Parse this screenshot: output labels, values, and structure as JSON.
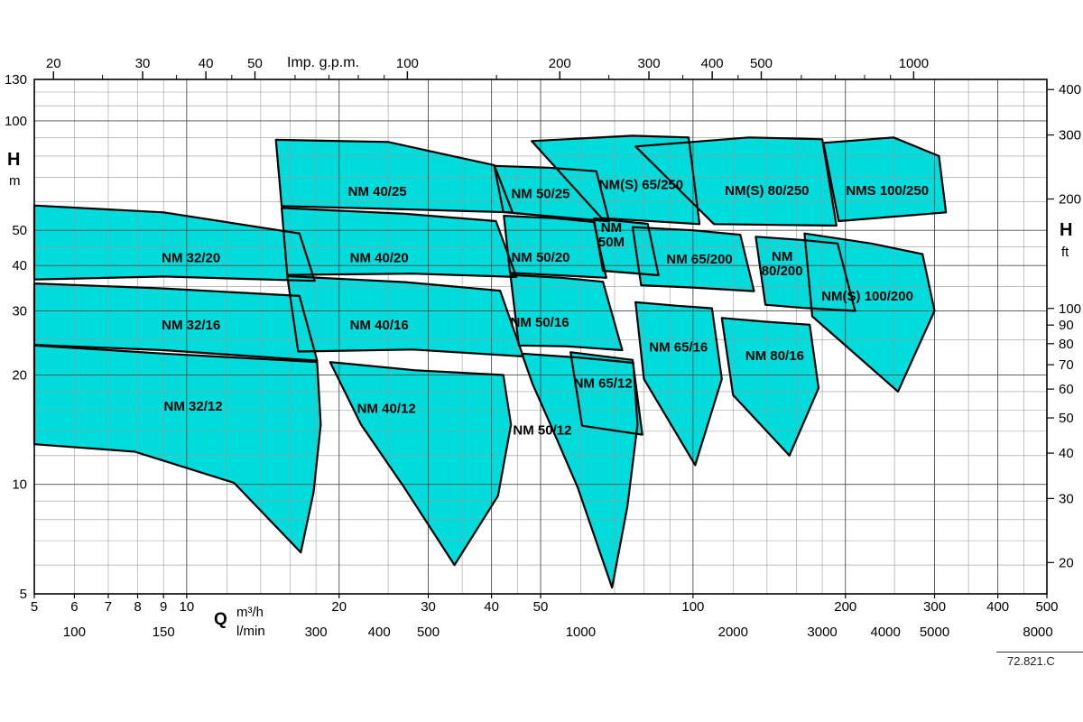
{
  "meta": {
    "drawing_number": "72.821.C"
  },
  "colors": {
    "background": "#ffffff",
    "region_fill": "#00DCDC",
    "region_stroke": "#000000",
    "grid_minor": "#9a9a9a",
    "grid_major": "#4d4d4d",
    "axis": "#000000"
  },
  "chart_data": {
    "type": "area",
    "title": "",
    "x_axis_bottom": {
      "label": "Q",
      "unit_primary": "m³/h",
      "unit_secondary": "l/min",
      "scale": "log",
      "range_m3h": [
        5,
        500
      ],
      "ticks_m3h": [
        5,
        6,
        7,
        8,
        9,
        10,
        20,
        30,
        40,
        50,
        100,
        200,
        300,
        400,
        500
      ],
      "ticks_lmin": [
        100,
        150,
        300,
        400,
        500,
        1000,
        2000,
        3000,
        4000,
        5000,
        8000
      ],
      "m3h_per_lmin": 0.06
    },
    "x_axis_top": {
      "label": "Imp. g.p.m.",
      "ticks": [
        20,
        30,
        40,
        50,
        100,
        200,
        300,
        400,
        500,
        1000
      ],
      "minor_ticks": [
        25,
        35,
        45,
        60,
        70,
        80,
        90,
        150,
        250,
        350,
        450,
        600,
        700,
        800,
        900
      ],
      "m3h_per_gpm": 0.2728
    },
    "y_axis_left": {
      "label": "H",
      "unit": "m",
      "scale": "log",
      "range": [
        5,
        130
      ],
      "ticks": [
        5,
        10,
        20,
        30,
        40,
        50,
        100,
        130
      ]
    },
    "y_axis_right": {
      "label": "H",
      "unit": "ft",
      "ticks": [
        20,
        30,
        40,
        50,
        60,
        70,
        80,
        90,
        100,
        200,
        300,
        400
      ],
      "m_per_ft": 0.3048
    },
    "grid": {
      "x_major": [
        5,
        10,
        20,
        30,
        40,
        50,
        100,
        200,
        300,
        400,
        500
      ],
      "x_minor": [
        6,
        7,
        8,
        9,
        12,
        14,
        16,
        18,
        25,
        35,
        45,
        60,
        70,
        80,
        90,
        120,
        140,
        160,
        180,
        250,
        350,
        450
      ],
      "y_major": [
        5,
        10,
        20,
        30,
        40,
        50,
        100,
        130
      ],
      "y_minor": [
        6,
        7,
        8,
        9,
        12,
        14,
        16,
        18,
        25,
        35,
        45,
        60,
        70,
        80,
        90,
        110,
        120
      ]
    },
    "regions": [
      {
        "name": "NM 32/20",
        "label_lines": [
          "NM 32/20"
        ],
        "label_at": [
          10.2,
          42
        ],
        "points": [
          [
            5,
            58.5
          ],
          [
            9,
            56
          ],
          [
            16.7,
            49
          ],
          [
            17.9,
            36.3
          ],
          [
            9,
            37.3
          ],
          [
            5,
            36.6
          ]
        ]
      },
      {
        "name": "NM 32/16",
        "label_lines": [
          "NM 32/16"
        ],
        "label_at": [
          10.2,
          27.5
        ],
        "points": [
          [
            5,
            35.7
          ],
          [
            9,
            34.6
          ],
          [
            16.7,
            33
          ],
          [
            18.1,
            21.9
          ],
          [
            9,
            23.4
          ],
          [
            5,
            24.2
          ]
        ]
      },
      {
        "name": "NM 32/12",
        "label_lines": [
          "NM 32/12"
        ],
        "label_at": [
          10.3,
          16.4
        ],
        "points": [
          [
            5,
            24.1
          ],
          [
            9,
            22.9
          ],
          [
            18.1,
            21.7
          ],
          [
            18.4,
            14.6
          ],
          [
            17.8,
            9.5
          ],
          [
            16.8,
            6.5
          ],
          [
            12.4,
            10.1
          ],
          [
            7.9,
            12.3
          ],
          [
            5,
            12.9
          ]
        ]
      },
      {
        "name": "NM 40/25",
        "label_lines": [
          "NM 40/25"
        ],
        "label_at": [
          23.8,
          64
        ],
        "points": [
          [
            15,
            88.7
          ],
          [
            25,
            87.5
          ],
          [
            40.5,
            75.5
          ],
          [
            44,
            56
          ],
          [
            28,
            57
          ],
          [
            15.4,
            58.3
          ]
        ]
      },
      {
        "name": "NM 40/20",
        "label_lines": [
          "NM 40/20"
        ],
        "label_at": [
          24,
          42
        ],
        "points": [
          [
            15.4,
            57.6
          ],
          [
            27,
            55.5
          ],
          [
            40.8,
            53
          ],
          [
            44.8,
            37.2
          ],
          [
            28,
            38
          ],
          [
            15.8,
            37.7
          ]
        ]
      },
      {
        "name": "NM 40/16",
        "label_lines": [
          "NM 40/16"
        ],
        "label_at": [
          24,
          27.5
        ],
        "points": [
          [
            15.8,
            37.4
          ],
          [
            27,
            36
          ],
          [
            41.6,
            34.1
          ],
          [
            46.2,
            22.5
          ],
          [
            28,
            23.5
          ],
          [
            16.6,
            23.2
          ]
        ]
      },
      {
        "name": "NM 40/12",
        "label_lines": [
          "NM 40/12"
        ],
        "label_at": [
          24.8,
          16.2
        ],
        "points": [
          [
            19.2,
            21.7
          ],
          [
            28.3,
            20.6
          ],
          [
            42.2,
            20
          ],
          [
            43.7,
            14.6
          ],
          [
            41.2,
            9.3
          ],
          [
            33.8,
            6
          ],
          [
            26.9,
            9.8
          ],
          [
            22.1,
            14.6
          ]
        ]
      },
      {
        "name": "NM 50/25",
        "label_lines": [
          "NM 50/25"
        ],
        "label_at": [
          50,
          63
        ],
        "points": [
          [
            40.5,
            75.2
          ],
          [
            52,
            74.3
          ],
          [
            64.4,
            72.7
          ],
          [
            68.3,
            52.9
          ],
          [
            53.4,
            54.5
          ],
          [
            42.2,
            56.1
          ]
        ]
      },
      {
        "name": "NM 50M",
        "label_lines": [
          "NM",
          "50M"
        ],
        "label_at": [
          69,
          48.7
        ],
        "points": [
          [
            63.7,
            53.9
          ],
          [
            81.4,
            52.1
          ],
          [
            85.5,
            37.6
          ],
          [
            66.4,
            38.7
          ]
        ]
      },
      {
        "name": "NM 50/20",
        "label_lines": [
          "NM 50/20"
        ],
        "label_at": [
          50,
          42.2
        ],
        "points": [
          [
            42.3,
            54.8
          ],
          [
            53,
            54
          ],
          [
            63.7,
            52.7
          ],
          [
            67.4,
            37
          ],
          [
            54,
            37.6
          ],
          [
            43.5,
            38.2
          ]
        ]
      },
      {
        "name": "NM 50/16",
        "label_lines": [
          "NM 50/16"
        ],
        "label_at": [
          49.8,
          27.9
        ],
        "points": [
          [
            43.6,
            37.7
          ],
          [
            55,
            37
          ],
          [
            66.4,
            36.1
          ],
          [
            72.5,
            23.4
          ],
          [
            56,
            24
          ],
          [
            45.3,
            24.1
          ]
        ]
      },
      {
        "name": "NM 50/12",
        "label_lines": [
          "NM 50/12"
        ],
        "label_at": [
          50.4,
          14.1
        ],
        "points": [
          [
            45.9,
            22.9
          ],
          [
            60,
            22.3
          ],
          [
            76.2,
            21.6
          ],
          [
            77.7,
            14.6
          ],
          [
            74.2,
            8.7
          ],
          [
            69.2,
            5.2
          ],
          [
            59.2,
            9.8
          ],
          [
            52.3,
            14.6
          ],
          [
            48.2,
            18.9
          ]
        ]
      },
      {
        "name": "NM 65/12",
        "label_lines": [
          "NM 65/12"
        ],
        "label_at": [
          66.4,
          19
        ],
        "points": [
          [
            57.3,
            23.1
          ],
          [
            76,
            22
          ],
          [
            79.4,
            13.7
          ],
          [
            60.4,
            14.5
          ]
        ]
      },
      {
        "name": "NM 65/16",
        "label_lines": [
          "NM 65/16"
        ],
        "label_at": [
          93.6,
          23.9
        ],
        "points": [
          [
            77,
            31.7
          ],
          [
            93,
            31
          ],
          [
            109,
            30.5
          ],
          [
            114,
            19.5
          ],
          [
            101,
            11.3
          ],
          [
            80,
            19.5
          ]
        ]
      },
      {
        "name": "NM 65/200",
        "label_lines": [
          "NM 65/200"
        ],
        "label_at": [
          103,
          41.7
        ],
        "points": [
          [
            76,
            51
          ],
          [
            100,
            50
          ],
          [
            124,
            48.6
          ],
          [
            132,
            34
          ],
          [
            100,
            34.8
          ],
          [
            79,
            35.3
          ]
        ]
      },
      {
        "name": "NM(S) 65/250",
        "label_lines": [
          "NM(S) 65/250"
        ],
        "label_at": [
          79,
          66.7
        ],
        "points": [
          [
            48,
            88
          ],
          [
            76,
            91
          ],
          [
            98,
            90
          ],
          [
            103,
            52
          ],
          [
            66,
            54
          ]
        ]
      },
      {
        "name": "NM(S) 80/250",
        "label_lines": [
          "NM(S) 80/250"
        ],
        "label_at": [
          140,
          64.4
        ],
        "points": [
          [
            77,
            85
          ],
          [
            129,
            90
          ],
          [
            180,
            89
          ],
          [
            192,
            51.5
          ],
          [
            110,
            52
          ]
        ]
      },
      {
        "name": "NM 80/200",
        "label_lines": [
          "NM",
          "80/200"
        ],
        "label_at": [
          150,
          40.5
        ],
        "points": [
          [
            133,
            48
          ],
          [
            165,
            47
          ],
          [
            193,
            46
          ],
          [
            209,
            30
          ],
          [
            165,
            30.6
          ],
          [
            139,
            31.2
          ]
        ]
      },
      {
        "name": "NM 80/16",
        "label_lines": [
          "NM 80/16"
        ],
        "label_at": [
          145,
          22.6
        ],
        "points": [
          [
            114,
            28.7
          ],
          [
            140,
            28
          ],
          [
            170,
            27.5
          ],
          [
            177,
            18.4
          ],
          [
            155,
            12
          ],
          [
            120,
            17.6
          ]
        ]
      },
      {
        "name": "NM(S) 100/200",
        "label_lines": [
          "NM(S) 100/200"
        ],
        "label_at": [
          221,
          33
        ],
        "points": [
          [
            166,
            49
          ],
          [
            225,
            46
          ],
          [
            284,
            43
          ],
          [
            300,
            30
          ],
          [
            254,
            18
          ],
          [
            172,
            29
          ]
        ]
      },
      {
        "name": "NMS 100/250",
        "label_lines": [
          "NMS 100/250"
        ],
        "label_at": [
          242,
          64.4
        ],
        "points": [
          [
            181,
            87
          ],
          [
            249,
            90
          ],
          [
            306,
            80
          ],
          [
            316,
            56
          ],
          [
            194,
            53
          ]
        ]
      }
    ]
  }
}
